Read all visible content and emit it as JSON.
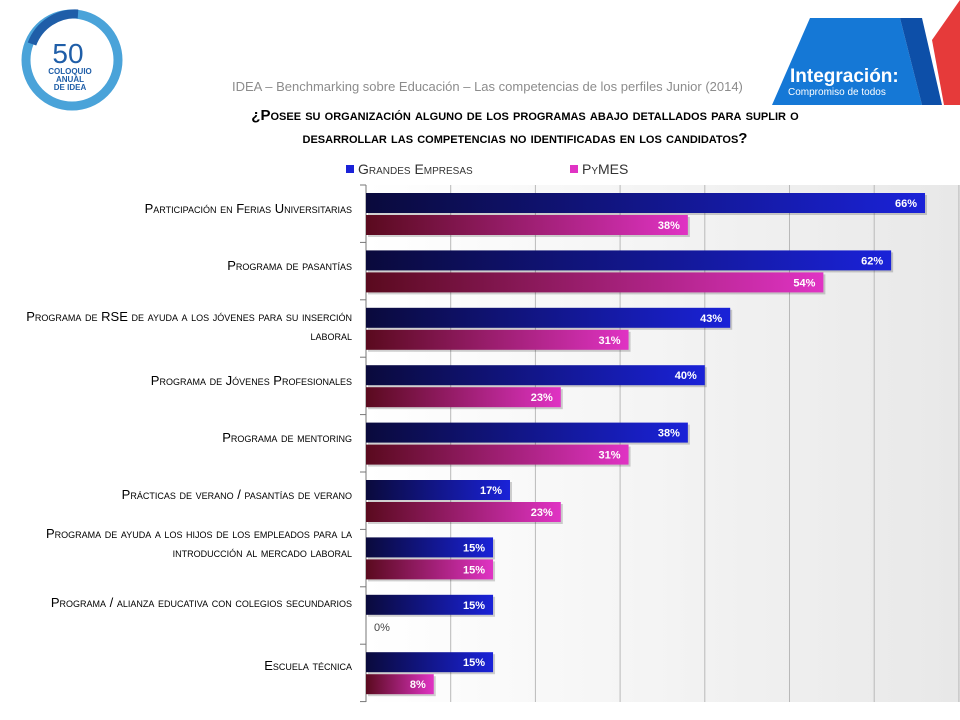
{
  "header": {
    "logo_left": {
      "number": "50",
      "line1": "COLOQUIO",
      "line2": "ANUAL",
      "line3": "DE IDEA"
    },
    "logo_right": {
      "title": "Integración:",
      "subtitle": "Compromiso de todos"
    },
    "source": "IDEA – Benchmarking sobre Educación – Las competencias de los perfiles Junior (2014)"
  },
  "title_line1": "¿Posee su organización alguno de los programas abajo detallados para suplir o",
  "title_line2": "desarrollar las competencias no identificadas en los candidatos?",
  "colors": {
    "grandes": "#1a22d8",
    "pymes": "#e033c4",
    "grid": "#b9b9b9",
    "plot_bg": "#e6e6e6"
  },
  "chart_data": {
    "type": "bar",
    "orientation": "horizontal",
    "categories": [
      "Participación en Ferias Universitarias",
      "Programa de pasantías",
      "Programa de RSE de ayuda a los jóvenes para su inserción laboral",
      "Programa de Jóvenes Profesionales",
      "Programa de mentoring",
      "Prácticas de verano / pasantías de verano",
      "Programa de ayuda a los hijos de los empleados para la introducción al mercado laboral",
      "Programa / alianza educativa con colegios secundarios",
      "Escuela técnica"
    ],
    "series": [
      {
        "name": "Grandes Empresas",
        "values": [
          66,
          62,
          43,
          40,
          38,
          17,
          15,
          15,
          15
        ]
      },
      {
        "name": "PyMES",
        "values": [
          38,
          54,
          31,
          23,
          31,
          23,
          15,
          0,
          8
        ]
      }
    ],
    "data_labels": {
      "grandes": [
        "66%",
        "62%",
        "43%",
        "40%",
        "38%",
        "17%",
        "15%",
        "15%",
        "15%"
      ],
      "pymes": [
        "38%",
        "54%",
        "31%",
        "23%",
        "31%",
        "23%",
        "15%",
        "0%",
        "8%"
      ]
    },
    "xlim": [
      0,
      70
    ],
    "x_gridlines": [
      10,
      20,
      30,
      40,
      50,
      60,
      70
    ],
    "grid": true,
    "legend_position": "top"
  }
}
